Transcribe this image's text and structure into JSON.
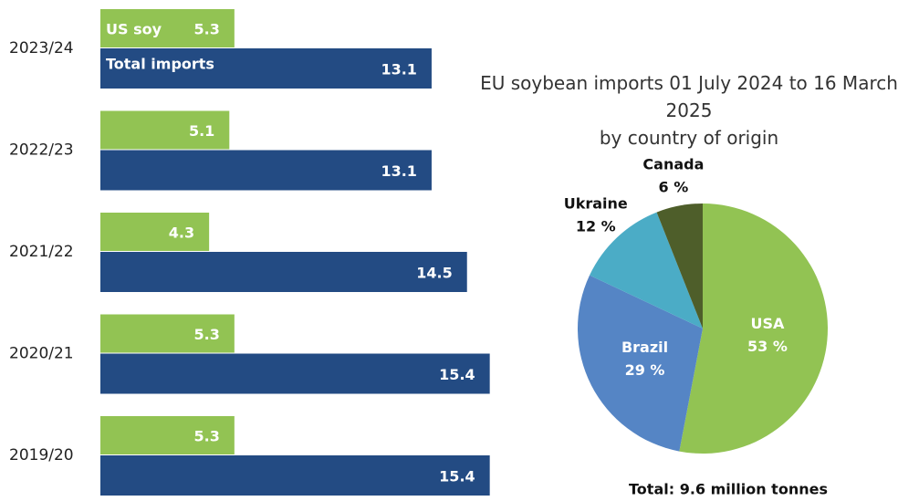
{
  "chart_data": [
    {
      "type": "hbar",
      "categories": [
        "2023/24",
        "2022/23",
        "2021/22",
        "2020/21",
        "2019/20"
      ],
      "series": [
        {
          "name": "US soy",
          "color": "#92c353",
          "values": [
            5.3,
            5.1,
            4.3,
            5.3,
            5.3
          ]
        },
        {
          "name": "Total imports",
          "color": "#234b83",
          "values": [
            13.1,
            13.1,
            14.5,
            15.4,
            15.4
          ]
        }
      ],
      "xlim": [
        0,
        17
      ]
    },
    {
      "type": "pie",
      "title": "EU soybean imports 01 July 2024 to 16 March 2025\nby country of origin",
      "categories": [
        "USA",
        "Brazil",
        "Ukraine",
        "Canada"
      ],
      "values": [
        53,
        29,
        12,
        6
      ],
      "value_labels": [
        "53 %",
        "29 %",
        "12 %",
        "6 %"
      ],
      "colors": [
        "#92c353",
        "#5585c5",
        "#4bacc6",
        "#4e5e2a"
      ],
      "caption": "Total: 9.6 million tonnes"
    }
  ]
}
